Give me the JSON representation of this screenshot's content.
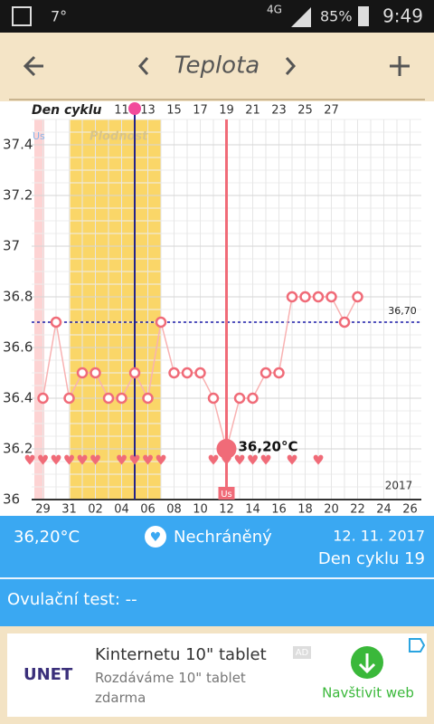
{
  "status_bar": {
    "temperature": "7°",
    "network": "4G",
    "battery": "85%",
    "time": "9:49"
  },
  "header": {
    "title": "Teplota"
  },
  "chart_data": {
    "type": "line",
    "top_axis_title": "Den cyklu",
    "top_categories": [
      null,
      null,
      null,
      null,
      null,
      null,
      "11",
      null,
      "13",
      null,
      "15",
      null,
      "17",
      null,
      "19",
      null,
      "21",
      null,
      "23",
      null,
      "25",
      null,
      "27",
      null,
      null,
      null,
      null,
      null,
      null
    ],
    "categories": [
      "29",
      null,
      "31",
      null,
      "02",
      null,
      "04",
      null,
      "06",
      null,
      "08",
      null,
      "10",
      null,
      "12",
      null,
      "14",
      null,
      "16",
      null,
      "18",
      null,
      "20",
      null,
      "22",
      null,
      "24",
      null,
      "26"
    ],
    "series": [
      {
        "color": "#f06b78",
        "values": [
          36.4,
          36.7,
          36.4,
          36.5,
          36.5,
          36.4,
          36.4,
          36.5,
          36.4,
          36.7,
          36.5,
          36.5,
          36.5,
          36.4,
          36.2,
          36.4,
          36.4,
          36.5,
          36.5,
          36.8,
          36.8,
          36.8,
          36.8,
          36.7,
          36.8,
          null,
          null,
          null,
          null
        ],
        "value_labels": [
          null,
          null,
          null,
          null,
          null,
          null,
          null,
          null,
          null,
          null,
          null,
          null,
          null,
          null,
          "36,20°C",
          null,
          null,
          null,
          null,
          null,
          null,
          null,
          null,
          null,
          null,
          null,
          null,
          null,
          null
        ]
      }
    ],
    "ylim": [
      36,
      37.5
    ],
    "yticks": [
      36,
      36.2,
      36.4,
      36.6,
      36.8,
      37,
      37.2,
      37.4
    ],
    "reference_line": {
      "value": 36.7,
      "label": "36,70",
      "color": "#1a1aa8"
    },
    "fertile_label": "Plodnost",
    "period_label": "Us",
    "today_label": "Us",
    "year": "2017",
    "grid": true
  },
  "summary": {
    "temperature": "36,20°C",
    "status": "Nechráněný",
    "date": "12. 11. 2017",
    "cycle_day": "Den cyklu 19"
  },
  "ovulation_test": "Ovulační test: --",
  "ad": {
    "brand": "UNET",
    "title": "Kinternetu 10\" tablet",
    "badge": "AD",
    "text": "Rozdáváme 10\" tablet zdarma",
    "action": "Navštivit web"
  }
}
